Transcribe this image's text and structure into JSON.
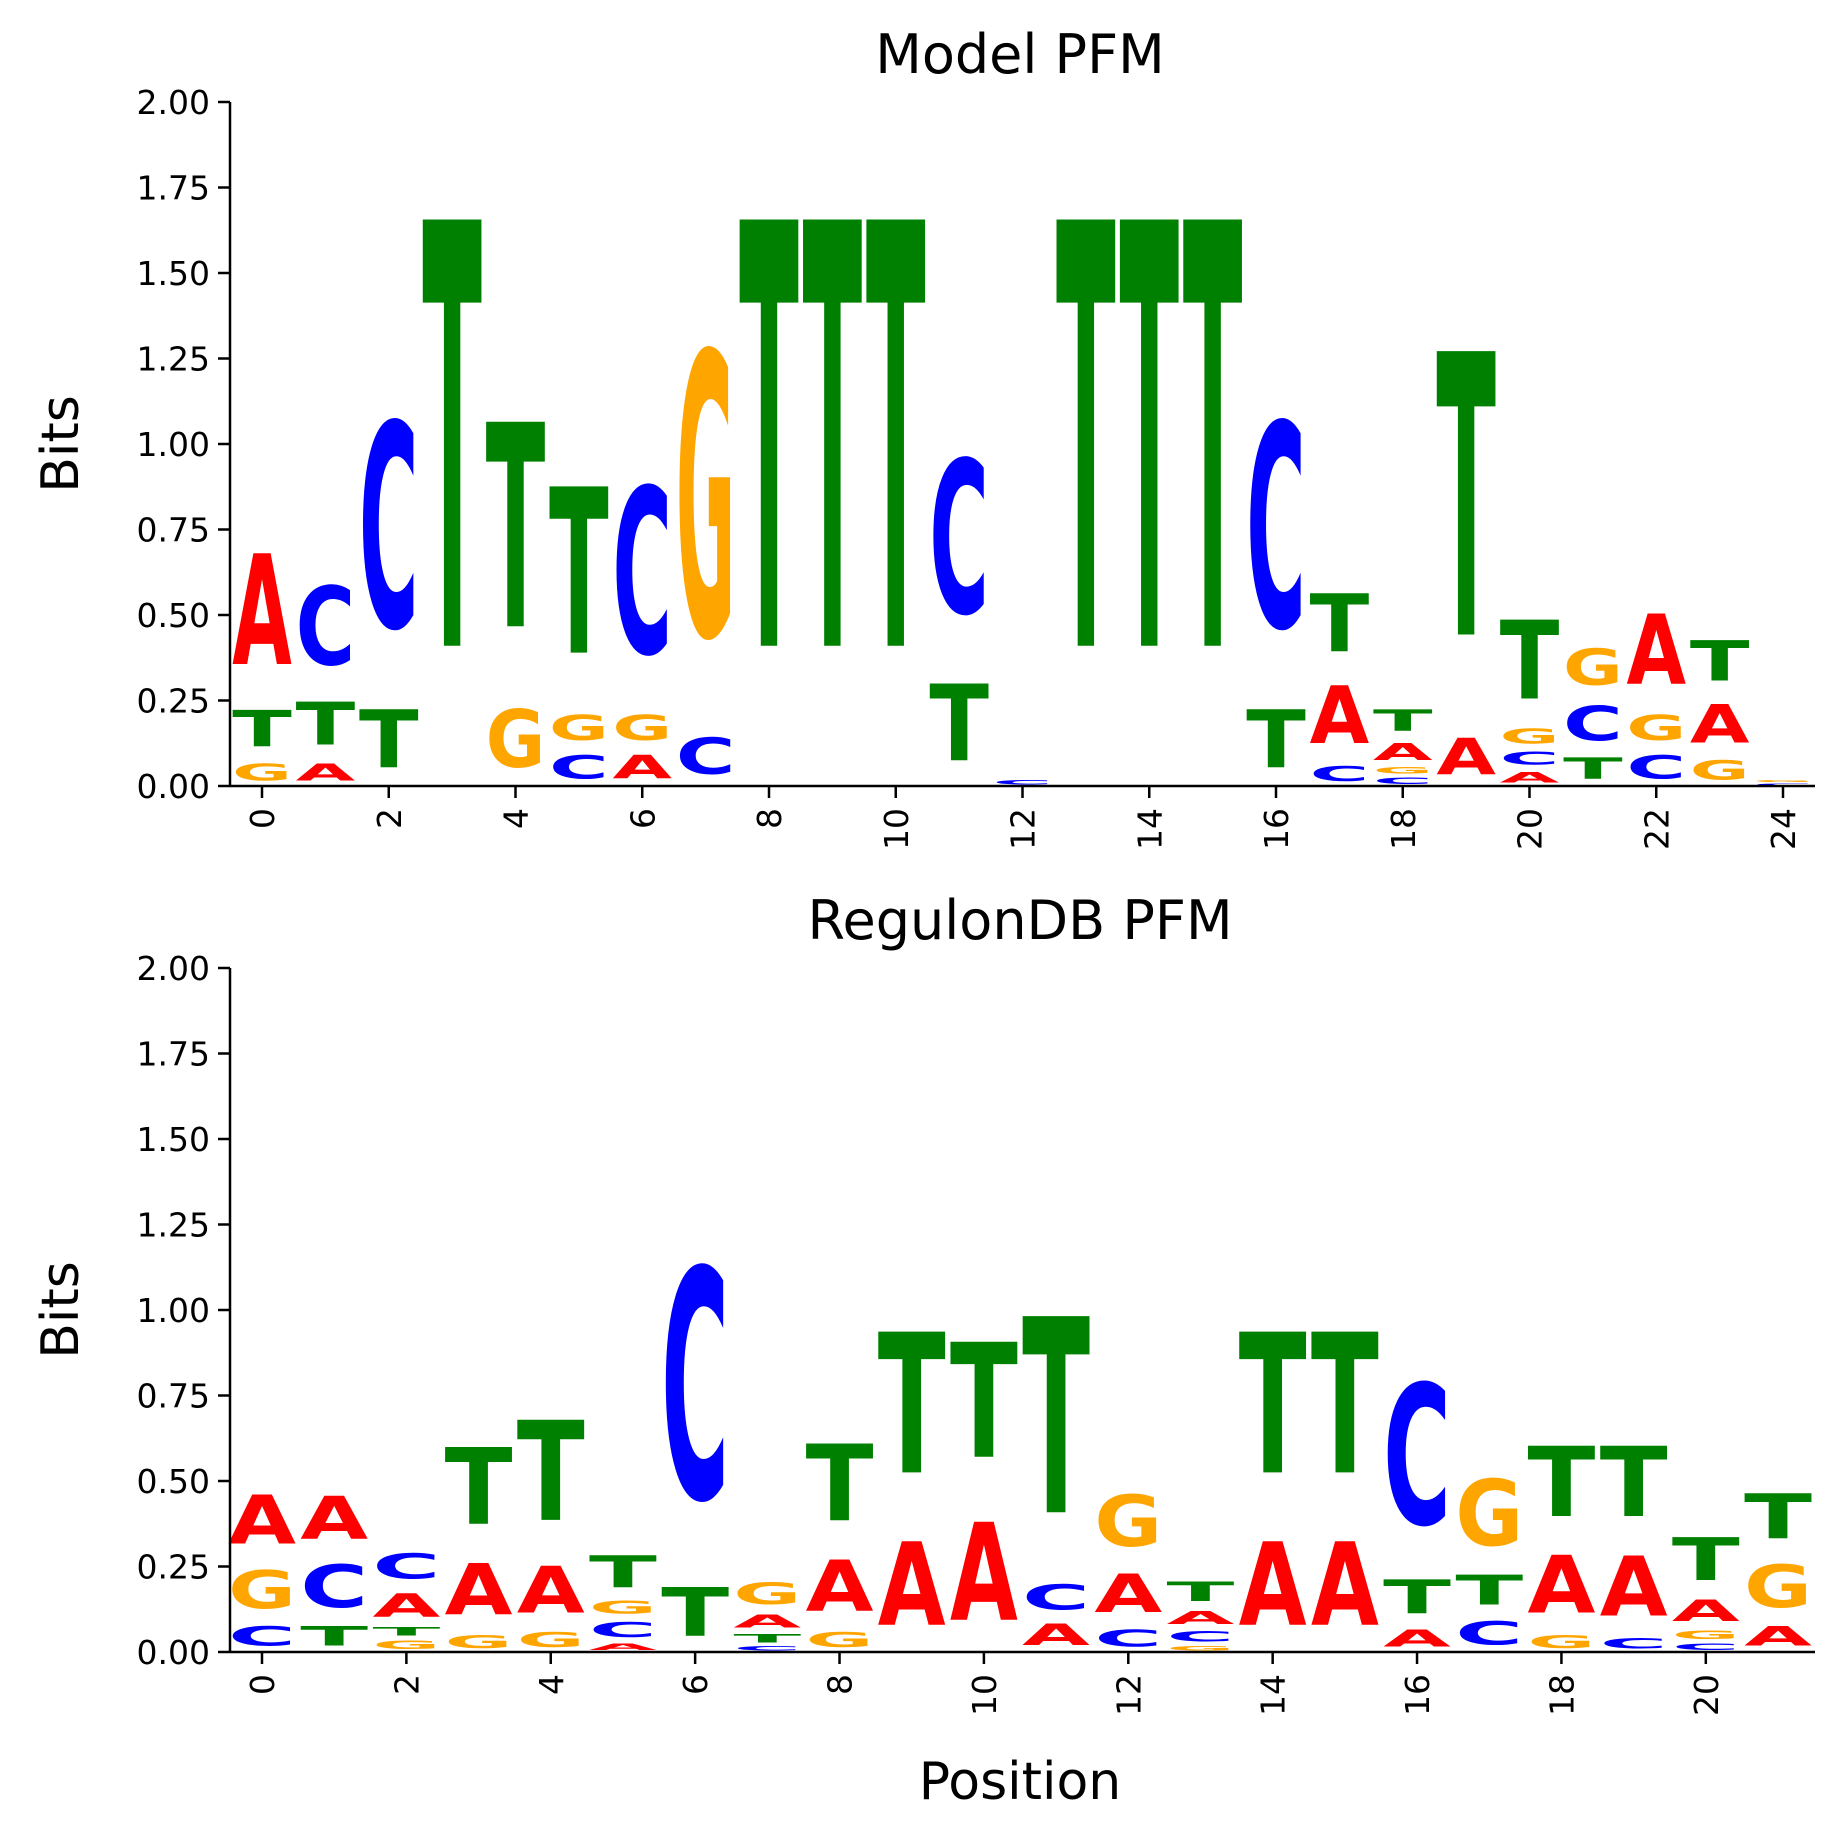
{
  "chart_data": [
    {
      "type": "sequence-logo",
      "title": "Model PFM",
      "ylabel": "Bits",
      "xlabel": "",
      "ylim": [
        0,
        2
      ],
      "yticks": [
        "0.00",
        "0.25",
        "0.50",
        "0.75",
        "1.00",
        "1.25",
        "1.50",
        "1.75",
        "2.00"
      ],
      "xticks": [
        "0",
        "2",
        "4",
        "6",
        "8",
        "10",
        "12",
        "14",
        "16",
        "18",
        "20",
        "22",
        "24"
      ],
      "positions": 25,
      "logo": [
        [
          [
            "G",
            0.08
          ],
          [
            "T",
            0.17
          ],
          [
            "A",
            0.52
          ]
        ],
        [
          [
            "A",
            0.08
          ],
          [
            "T",
            0.2
          ],
          [
            "C",
            0.37
          ]
        ],
        [
          [
            "T",
            0.27
          ],
          [
            "C",
            0.96
          ]
        ],
        [
          [
            "T",
            2.0
          ]
        ],
        [
          [
            "G",
            0.27
          ],
          [
            "T",
            0.96
          ]
        ],
        [
          [
            "C",
            0.11
          ],
          [
            "G",
            0.12
          ],
          [
            "T",
            0.78
          ]
        ],
        [
          [
            "A",
            0.11
          ],
          [
            "G",
            0.12
          ],
          [
            "C",
            0.78
          ]
        ],
        [
          [
            "C",
            0.17
          ],
          [
            "G",
            1.33
          ]
        ],
        [
          [
            "T",
            2.0
          ]
        ],
        [
          [
            "T",
            2.0
          ]
        ],
        [
          [
            "T",
            2.0
          ]
        ],
        [
          [
            "T",
            0.36
          ],
          [
            "C",
            0.72
          ]
        ],
        [
          [
            "C",
            0.02
          ]
        ],
        [
          [
            "T",
            2.0
          ]
        ],
        [
          [
            "T",
            2.0
          ]
        ],
        [
          [
            "T",
            2.0
          ]
        ],
        [
          [
            "T",
            0.27
          ],
          [
            "C",
            0.96
          ]
        ],
        [
          [
            "C",
            0.07
          ],
          [
            "A",
            0.27
          ],
          [
            "T",
            0.27
          ]
        ],
        [
          [
            "C",
            0.03
          ],
          [
            "G",
            0.03
          ],
          [
            "A",
            0.08
          ],
          [
            "T",
            0.1
          ]
        ],
        [
          [
            "A",
            0.17
          ],
          [
            "T",
            1.33
          ]
        ],
        [
          [
            "A",
            0.05
          ],
          [
            "C",
            0.06
          ],
          [
            "G",
            0.07
          ],
          [
            "T",
            0.37
          ]
        ],
        [
          [
            "T",
            0.1
          ],
          [
            "C",
            0.16
          ],
          [
            "G",
            0.17
          ]
        ],
        [
          [
            "C",
            0.11
          ],
          [
            "G",
            0.12
          ],
          [
            "A",
            0.33
          ]
        ],
        [
          [
            "G",
            0.09
          ],
          [
            "A",
            0.18
          ],
          [
            "T",
            0.19
          ]
        ],
        [
          [
            "C",
            0.01
          ],
          [
            "G",
            0.01
          ]
        ]
      ],
      "colors": {
        "A": "#ff0000",
        "C": "#0000ff",
        "G": "#ffa500",
        "T": "#008000"
      }
    },
    {
      "type": "sequence-logo",
      "title": "RegulonDB PFM",
      "ylabel": "Bits",
      "xlabel": "Position",
      "ylim": [
        0,
        2
      ],
      "yticks": [
        "0.00",
        "0.25",
        "0.50",
        "0.75",
        "1.00",
        "1.25",
        "1.50",
        "1.75",
        "2.00"
      ],
      "xticks": [
        "0",
        "2",
        "4",
        "6",
        "8",
        "10",
        "12",
        "14",
        "16",
        "18",
        "20"
      ],
      "positions": 22,
      "logo": [
        [
          [
            "C",
            0.09
          ],
          [
            "G",
            0.18
          ],
          [
            "A",
            0.23
          ]
        ],
        [
          [
            "T",
            0.09
          ],
          [
            "C",
            0.2
          ],
          [
            "A",
            0.2
          ]
        ],
        [
          [
            "G",
            0.04
          ],
          [
            "T",
            0.04
          ],
          [
            "A",
            0.11
          ],
          [
            "C",
            0.12
          ]
        ],
        [
          [
            "G",
            0.06
          ],
          [
            "A",
            0.24
          ],
          [
            "T",
            0.36
          ]
        ],
        [
          [
            "G",
            0.07
          ],
          [
            "A",
            0.22
          ],
          [
            "T",
            0.47
          ]
        ],
        [
          [
            "A",
            0.03
          ],
          [
            "C",
            0.07
          ],
          [
            "G",
            0.06
          ],
          [
            "T",
            0.15
          ]
        ],
        [
          [
            "T",
            0.23
          ],
          [
            "C",
            1.08
          ]
        ],
        [
          [
            "C",
            0.02
          ],
          [
            "T",
            0.04
          ],
          [
            "A",
            0.06
          ],
          [
            "G",
            0.1
          ]
        ],
        [
          [
            "G",
            0.07
          ],
          [
            "A",
            0.24
          ],
          [
            "T",
            0.36
          ]
        ],
        [
          [
            "A",
            0.39
          ],
          [
            "T",
            0.66
          ]
        ],
        [
          [
            "A",
            0.46
          ],
          [
            "T",
            0.54
          ]
        ],
        [
          [
            "A",
            0.1
          ],
          [
            "C",
            0.12
          ],
          [
            "T",
            0.92
          ]
        ],
        [
          [
            "C",
            0.08
          ],
          [
            "A",
            0.18
          ],
          [
            "G",
            0.24
          ]
        ],
        [
          [
            "G",
            0.02
          ],
          [
            "C",
            0.05
          ],
          [
            "A",
            0.06
          ],
          [
            "T",
            0.09
          ]
        ],
        [
          [
            "A",
            0.39
          ],
          [
            "T",
            0.66
          ]
        ],
        [
          [
            "A",
            0.39
          ],
          [
            "T",
            0.66
          ]
        ],
        [
          [
            "A",
            0.08
          ],
          [
            "T",
            0.16
          ],
          [
            "C",
            0.66
          ]
        ],
        [
          [
            "C",
            0.11
          ],
          [
            "T",
            0.14
          ],
          [
            "G",
            0.31
          ]
        ],
        [
          [
            "G",
            0.06
          ],
          [
            "A",
            0.27
          ],
          [
            "T",
            0.33
          ]
        ],
        [
          [
            "C",
            0.05
          ],
          [
            "A",
            0.28
          ],
          [
            "T",
            0.33
          ]
        ],
        [
          [
            "C",
            0.03
          ],
          [
            "G",
            0.04
          ],
          [
            "A",
            0.1
          ],
          [
            "T",
            0.2
          ]
        ],
        [
          [
            "A",
            0.09
          ],
          [
            "G",
            0.2
          ],
          [
            "T",
            0.21
          ]
        ]
      ],
      "colors": {
        "A": "#ff0000",
        "C": "#0000ff",
        "G": "#ffa500",
        "T": "#008000"
      }
    }
  ]
}
